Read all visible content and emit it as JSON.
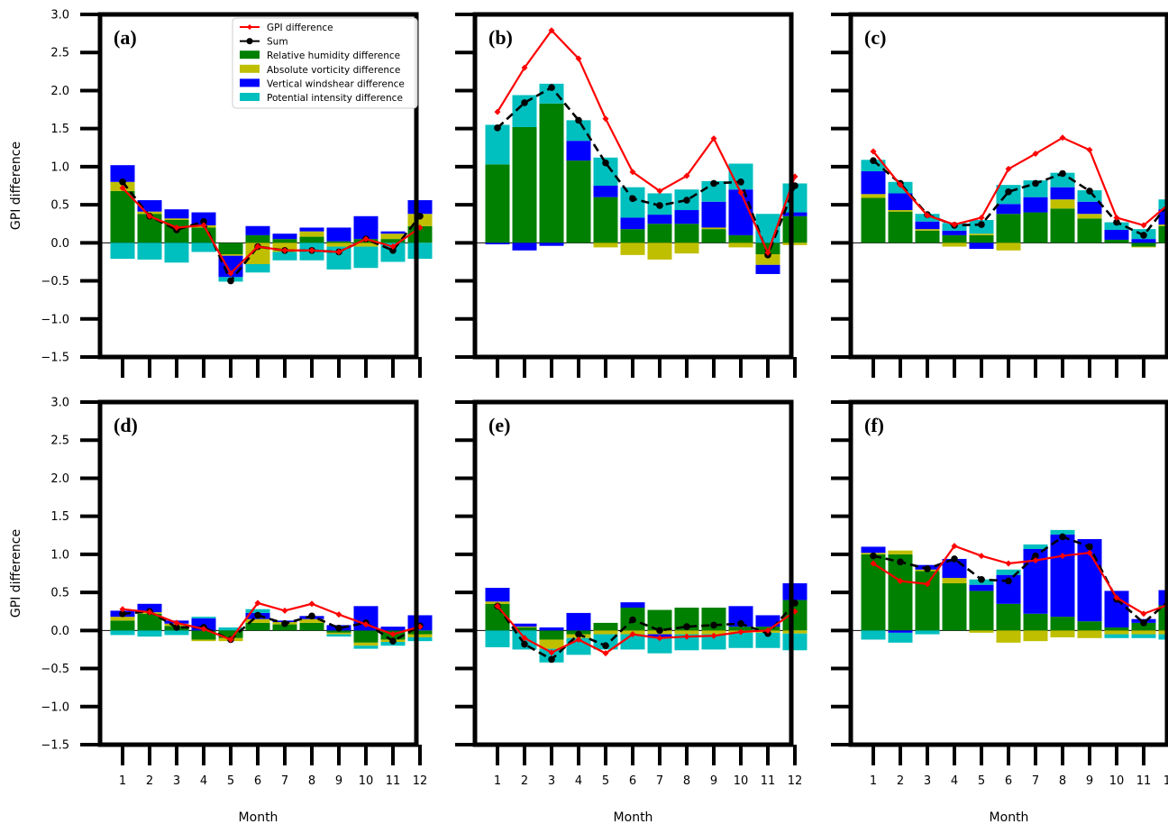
{
  "chart_data": {
    "type": "bar",
    "ylabel": "GPI difference",
    "xlabel": "Month",
    "ylim": [
      -1.5,
      3.0
    ],
    "yticks": [
      "3.0",
      "2.5",
      "2.0",
      "1.5",
      "1.0",
      "0.5",
      "0.0",
      "−0.5",
      "−1.0",
      "−1.5"
    ],
    "categories": [
      "1",
      "2",
      "3",
      "4",
      "5",
      "6",
      "7",
      "8",
      "9",
      "10",
      "11",
      "12"
    ],
    "legend": {
      "position": "top-right of panel (a)",
      "entries": [
        "GPI difference",
        "Sum",
        "Relative humidity difference",
        "Absolute vorticity difference",
        "Vertical windshear difference",
        "Potential intensity difference"
      ]
    },
    "colors": {
      "rh": "#008000",
      "av": "#bfbf00",
      "vws": "#0000ff",
      "pi": "#00bfbf",
      "gpi": "#ff0000",
      "sum": "#000000"
    },
    "panels": [
      {
        "label": "(a)",
        "rh": [
          0.68,
          0.38,
          0.3,
          0.2,
          -0.15,
          0.1,
          0.05,
          0.08,
          0.02,
          0.05,
          0.05,
          0.22
        ],
        "av": [
          0.12,
          0.03,
          0.02,
          0.03,
          -0.02,
          -0.28,
          -0.12,
          0.07,
          -0.05,
          -0.05,
          0.07,
          0.16
        ],
        "vws": [
          0.22,
          0.15,
          0.12,
          0.17,
          -0.28,
          0.12,
          0.07,
          0.05,
          0.18,
          0.3,
          0.03,
          0.18
        ],
        "pi": [
          -0.21,
          -0.22,
          -0.26,
          -0.12,
          -0.06,
          -0.11,
          -0.11,
          -0.23,
          -0.3,
          -0.28,
          -0.25,
          -0.21
        ],
        "sum": [
          0.8,
          0.35,
          0.17,
          0.28,
          -0.5,
          -0.05,
          -0.1,
          -0.1,
          -0.12,
          0.05,
          -0.1,
          0.35
        ],
        "gpi": [
          0.72,
          0.35,
          0.2,
          0.23,
          -0.4,
          -0.05,
          -0.1,
          -0.1,
          -0.12,
          0.05,
          -0.05,
          0.2
        ]
      },
      {
        "label": "(b)",
        "rh": [
          1.03,
          1.52,
          1.83,
          1.08,
          0.6,
          0.18,
          0.25,
          0.25,
          0.18,
          0.1,
          -0.15,
          0.35
        ],
        "av": [
          0.0,
          0.0,
          0.0,
          0.0,
          -0.06,
          -0.16,
          -0.22,
          -0.14,
          0.02,
          -0.06,
          -0.14,
          -0.03
        ],
        "vws": [
          -0.02,
          -0.1,
          -0.04,
          0.26,
          0.15,
          0.15,
          0.12,
          0.18,
          0.34,
          0.6,
          -0.12,
          0.05
        ],
        "pi": [
          0.52,
          0.42,
          0.26,
          0.27,
          0.37,
          0.4,
          0.28,
          0.27,
          0.27,
          0.34,
          0.38,
          0.38
        ],
        "sum": [
          1.51,
          1.84,
          2.04,
          1.61,
          1.05,
          0.58,
          0.49,
          0.56,
          0.78,
          0.8,
          -0.16,
          0.75
        ],
        "gpi": [
          1.72,
          2.3,
          2.79,
          2.42,
          1.63,
          0.93,
          0.68,
          0.88,
          1.37,
          0.66,
          -0.13,
          0.87
        ]
      },
      {
        "label": "(c)",
        "rh": [
          0.59,
          0.41,
          0.16,
          0.1,
          0.1,
          0.38,
          0.4,
          0.45,
          0.32,
          0.04,
          -0.05,
          0.22
        ],
        "av": [
          0.05,
          0.02,
          0.02,
          -0.05,
          0.02,
          -0.1,
          0.0,
          0.12,
          0.06,
          0.0,
          -0.01,
          0.02
        ],
        "vws": [
          0.3,
          0.22,
          0.1,
          0.06,
          -0.08,
          0.13,
          0.2,
          0.16,
          0.16,
          0.13,
          0.05,
          0.2
        ],
        "pi": [
          0.15,
          0.15,
          0.1,
          0.1,
          0.18,
          0.25,
          0.22,
          0.19,
          0.15,
          0.1,
          0.13,
          0.13
        ],
        "sum": [
          1.08,
          0.78,
          0.37,
          0.23,
          0.24,
          0.67,
          0.78,
          0.91,
          0.68,
          0.27,
          0.1,
          0.55
        ],
        "gpi": [
          1.2,
          0.76,
          0.36,
          0.24,
          0.33,
          0.97,
          1.17,
          1.38,
          1.22,
          0.33,
          0.23,
          0.53
        ]
      },
      {
        "label": "(d)",
        "rh": [
          0.13,
          0.22,
          0.06,
          -0.12,
          -0.1,
          0.1,
          0.08,
          0.1,
          -0.03,
          -0.16,
          -0.12,
          -0.05
        ],
        "av": [
          0.05,
          0.02,
          0.03,
          -0.02,
          -0.04,
          0.05,
          0.03,
          0.05,
          -0.02,
          -0.04,
          -0.03,
          -0.04
        ],
        "vws": [
          0.08,
          0.11,
          0.04,
          0.16,
          0.0,
          0.08,
          0.02,
          0.04,
          0.07,
          0.32,
          0.05,
          0.2
        ],
        "pi": [
          -0.06,
          -0.08,
          -0.06,
          0.02,
          0.04,
          0.05,
          0.0,
          0.0,
          -0.03,
          -0.04,
          -0.05,
          -0.05
        ],
        "sum": [
          0.22,
          0.25,
          0.04,
          0.04,
          -0.12,
          0.2,
          0.09,
          0.19,
          0.03,
          0.1,
          -0.14,
          0.06
        ],
        "gpi": [
          0.28,
          0.24,
          0.1,
          0.02,
          -0.12,
          0.36,
          0.26,
          0.35,
          0.21,
          0.08,
          -0.05,
          0.05
        ]
      },
      {
        "label": "(e)",
        "rh": [
          0.35,
          0.04,
          -0.12,
          -0.05,
          0.1,
          0.3,
          0.27,
          0.3,
          0.3,
          0.05,
          0.05,
          0.4
        ],
        "av": [
          0.03,
          0.01,
          -0.12,
          -0.05,
          -0.05,
          -0.05,
          -0.05,
          -0.05,
          -0.05,
          -0.03,
          -0.03,
          -0.04
        ],
        "vws": [
          0.18,
          0.04,
          0.04,
          0.23,
          0.0,
          0.07,
          -0.05,
          0.0,
          0.0,
          0.27,
          0.15,
          0.22
        ],
        "pi": [
          -0.22,
          -0.25,
          -0.18,
          -0.22,
          -0.2,
          -0.2,
          -0.2,
          -0.21,
          -0.2,
          -0.2,
          -0.2,
          -0.22
        ],
        "sum": [
          0.32,
          -0.18,
          -0.38,
          -0.05,
          -0.2,
          0.14,
          0.0,
          0.05,
          0.07,
          0.09,
          -0.04,
          0.36
        ],
        "gpi": [
          0.32,
          -0.1,
          -0.29,
          -0.12,
          -0.3,
          -0.05,
          -0.1,
          -0.08,
          -0.07,
          -0.02,
          0.0,
          0.25
        ]
      },
      {
        "label": "(f)",
        "rh": [
          1.0,
          1.0,
          0.78,
          0.62,
          0.52,
          0.35,
          0.22,
          0.18,
          0.12,
          0.04,
          0.1,
          0.33
        ],
        "av": [
          0.02,
          0.05,
          0.02,
          0.07,
          -0.03,
          -0.16,
          -0.14,
          -0.09,
          -0.1,
          -0.05,
          -0.05,
          -0.05
        ],
        "vws": [
          0.08,
          -0.03,
          0.06,
          0.25,
          0.08,
          0.38,
          0.85,
          1.08,
          1.08,
          0.48,
          0.05,
          0.2
        ],
        "pi": [
          -0.12,
          -0.13,
          -0.05,
          0.0,
          0.07,
          0.07,
          0.06,
          0.06,
          0.0,
          -0.05,
          -0.05,
          -0.07
        ],
        "sum": [
          0.98,
          0.9,
          0.81,
          0.94,
          0.67,
          0.65,
          0.98,
          1.23,
          1.1,
          0.41,
          0.1,
          0.41
        ],
        "gpi": [
          0.88,
          0.65,
          0.61,
          1.11,
          0.98,
          0.88,
          0.92,
          0.98,
          1.02,
          0.43,
          0.22,
          0.35
        ]
      }
    ]
  }
}
